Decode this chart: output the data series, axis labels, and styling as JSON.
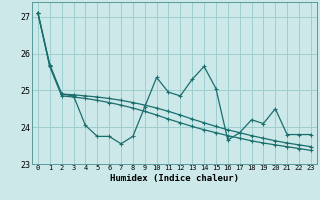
{
  "xlabel": "Humidex (Indice chaleur)",
  "bg_color": "#cce8e8",
  "grid_color": "#9ecece",
  "line_color": "#1a6e6e",
  "xlim": [
    -0.5,
    23.5
  ],
  "ylim": [
    23.0,
    27.4
  ],
  "yticks": [
    23,
    24,
    25,
    26,
    27
  ],
  "xticks": [
    0,
    1,
    2,
    3,
    4,
    5,
    6,
    7,
    8,
    9,
    10,
    11,
    12,
    13,
    14,
    15,
    16,
    17,
    18,
    19,
    20,
    21,
    22,
    23
  ],
  "series1": [
    27.1,
    25.7,
    24.9,
    24.85,
    24.05,
    23.75,
    23.75,
    23.55,
    23.75,
    24.55,
    25.35,
    24.95,
    24.85,
    25.3,
    25.65,
    25.05,
    23.65,
    23.85,
    24.2,
    24.1,
    24.5,
    23.8,
    23.8,
    23.8
  ],
  "series2": [
    27.1,
    25.65,
    24.85,
    24.82,
    24.78,
    24.73,
    24.67,
    24.6,
    24.52,
    24.43,
    24.33,
    24.22,
    24.12,
    24.02,
    23.93,
    23.85,
    23.77,
    23.7,
    23.63,
    23.57,
    23.52,
    23.47,
    23.42,
    23.37
  ],
  "series3": [
    27.1,
    25.65,
    24.9,
    24.88,
    24.85,
    24.82,
    24.78,
    24.73,
    24.67,
    24.6,
    24.52,
    24.43,
    24.33,
    24.22,
    24.12,
    24.02,
    23.93,
    23.85,
    23.77,
    23.7,
    23.63,
    23.57,
    23.52,
    23.47
  ]
}
